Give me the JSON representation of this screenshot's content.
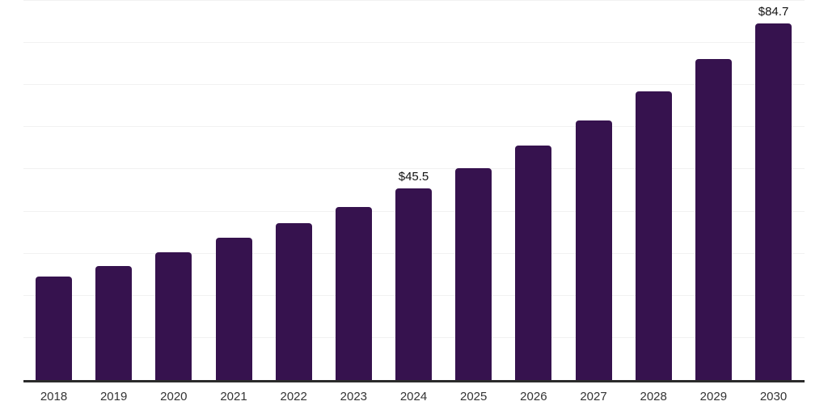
{
  "chart_data": {
    "type": "bar",
    "title": "",
    "xlabel": "",
    "ylabel": "",
    "categories": [
      "2018",
      "2019",
      "2020",
      "2021",
      "2022",
      "2023",
      "2024",
      "2025",
      "2026",
      "2027",
      "2028",
      "2029",
      "2030"
    ],
    "values": [
      24.5,
      27.1,
      30.3,
      33.7,
      37.2,
      41.1,
      45.5,
      50.2,
      55.6,
      61.7,
      68.6,
      76.1,
      84.7
    ],
    "annotations": [
      {
        "index": 6,
        "text": "$45.5"
      },
      {
        "index": 12,
        "text": "$84.7"
      }
    ],
    "ylim": [
      0,
      90
    ],
    "grid": "horizontal",
    "grid_step": 10,
    "legend": "none",
    "colors": {
      "bar": "#36124e",
      "axis_line": "#2b2b2b",
      "gridline": "#f1f1f1",
      "tick_label": "#333333",
      "annotation": "#111111",
      "background": "#ffffff"
    }
  }
}
